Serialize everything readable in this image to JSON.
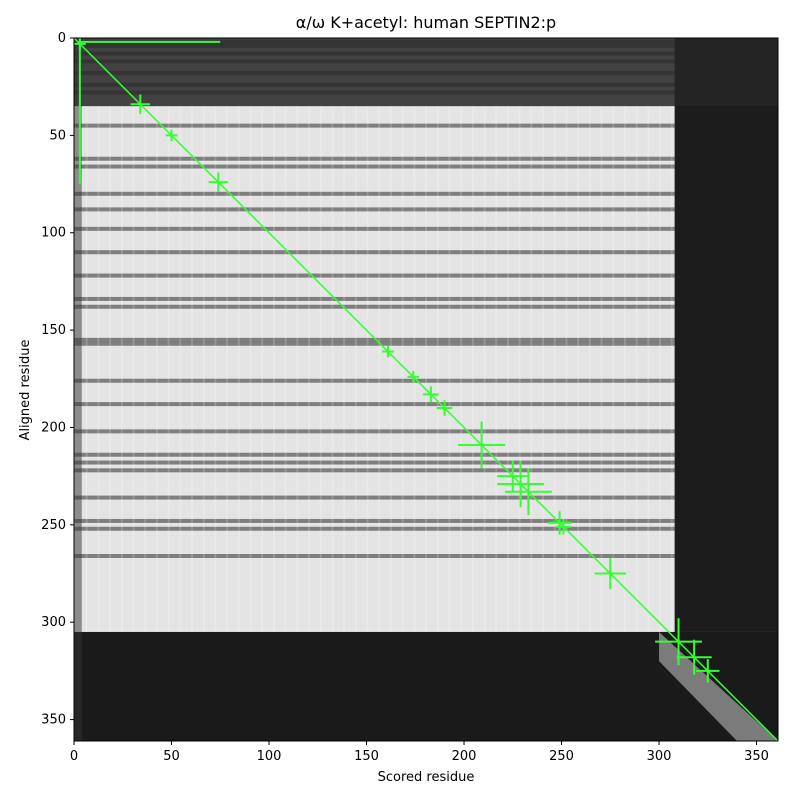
{
  "chart_data": {
    "type": "heatmap",
    "title": "α/ω K+acetyl: human SEPTIN2:p",
    "xlabel": "Scored residue",
    "ylabel": "Aligned residue",
    "xlim": [
      0,
      361
    ],
    "ylim": [
      361,
      0
    ],
    "x_ticks": [
      0,
      50,
      100,
      150,
      200,
      250,
      300,
      350
    ],
    "y_ticks": [
      0,
      50,
      100,
      150,
      200,
      250,
      300,
      350
    ],
    "colormap": "grayscale",
    "line_color": "#33ff33",
    "diagonal": {
      "from": [
        0,
        0
      ],
      "to": [
        361,
        361
      ]
    },
    "corner_bracket": {
      "vertical": {
        "x": 3,
        "y_from": 0,
        "y_to": 75
      },
      "horizontal": {
        "y": 2,
        "x_from": 3,
        "x_to": 75
      }
    },
    "dark_bands_y": [
      2,
      4,
      8,
      12,
      18,
      24,
      28,
      45,
      62,
      66,
      80,
      88,
      98,
      110,
      122,
      134,
      138,
      155,
      157,
      176,
      188,
      202,
      214,
      218,
      222,
      236,
      248,
      252,
      266
    ],
    "markers": [
      {
        "x": 3,
        "y": 3,
        "size": 3
      },
      {
        "x": 34,
        "y": 34,
        "size": 5
      },
      {
        "x": 50,
        "y": 50,
        "size": 3
      },
      {
        "x": 74,
        "y": 74,
        "size": 5
      },
      {
        "x": 161,
        "y": 161,
        "size": 3
      },
      {
        "x": 174,
        "y": 174,
        "size": 3
      },
      {
        "x": 183,
        "y": 183,
        "size": 4
      },
      {
        "x": 190,
        "y": 190,
        "size": 4
      },
      {
        "x": 209,
        "y": 209,
        "size": 12
      },
      {
        "x": 225,
        "y": 225,
        "size": 8
      },
      {
        "x": 229,
        "y": 229,
        "size": 12
      },
      {
        "x": 233,
        "y": 233,
        "size": 12
      },
      {
        "x": 249,
        "y": 249,
        "size": 6
      },
      {
        "x": 251,
        "y": 251,
        "size": 4
      },
      {
        "x": 275,
        "y": 275,
        "size": 8
      },
      {
        "x": 310,
        "y": 310,
        "size": 12
      },
      {
        "x": 318,
        "y": 318,
        "size": 9
      },
      {
        "x": 325,
        "y": 325,
        "size": 6
      }
    ]
  }
}
